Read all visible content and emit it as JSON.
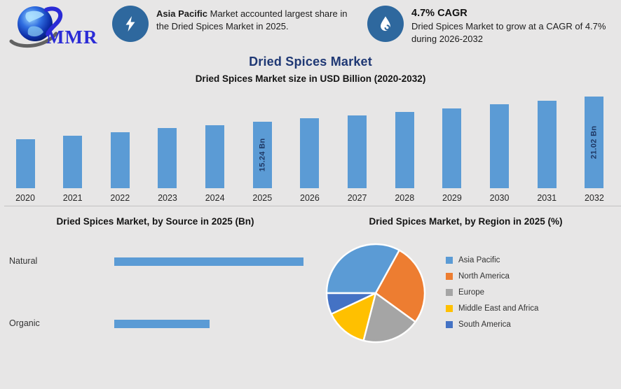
{
  "page": {
    "background": "#E7E6E6"
  },
  "header": {
    "logo_text": "MMR",
    "icon_circle_color": "#2E689E",
    "callout_1": {
      "icon": "lightning-icon",
      "lead_bold": "Asia Pacific",
      "text": " Market accounted largest share in the Dried Spices Market in 2025."
    },
    "callout_2": {
      "icon": "droplet-icon",
      "heading": "4.7% CAGR",
      "text": "Dried Spices Market to grow at a CAGR of 4.7% during 2026-2032"
    }
  },
  "title": "Dried Spices Market",
  "title_color": "#1F3874",
  "subtitle": "Dried Spices Market size in USD Billion (2020-2032)",
  "chart_data": [
    {
      "type": "bar",
      "orientation": "vertical",
      "title": "Dried Spices Market size in USD Billion (2020-2032)",
      "categories": [
        "2020",
        "2021",
        "2022",
        "2023",
        "2024",
        "2025",
        "2026",
        "2027",
        "2028",
        "2029",
        "2030",
        "2031",
        "2032"
      ],
      "values": [
        11.15,
        11.95,
        12.8,
        13.7,
        14.4,
        15.24,
        15.96,
        16.71,
        17.49,
        18.31,
        19.17,
        20.08,
        21.02
      ],
      "data_labels": {
        "2025": "15.24 Bn",
        "2032": "21.02 Bn"
      },
      "ylim": [
        0,
        21.02
      ],
      "grid": false,
      "bar_color": "#5B9BD5",
      "label_color": "#1F3864"
    },
    {
      "type": "bar",
      "orientation": "horizontal",
      "title": "Dried Spices Market, by Source in 2025 (Bn)",
      "categories": [
        "Natural",
        "Organic"
      ],
      "values_relative": [
        1.0,
        0.503
      ],
      "data_labels": {},
      "bar_color": "#5B9BD5"
    },
    {
      "type": "pie",
      "title": "Dried Spices Market, by Region in 2025 (%)",
      "labels": [
        "Asia Pacific",
        "North America",
        "Europe",
        "Middle East and Africa",
        "South America"
      ],
      "values_pct": [
        33,
        27,
        19,
        14,
        7
      ],
      "colors": [
        "#5B9BD5",
        "#ED7D31",
        "#A5A5A5",
        "#FFC000",
        "#4472C4"
      ],
      "start_angle": "west",
      "direction": "clockwise",
      "legend_position": "right",
      "slice_border_color": "#FFFFFF"
    }
  ]
}
